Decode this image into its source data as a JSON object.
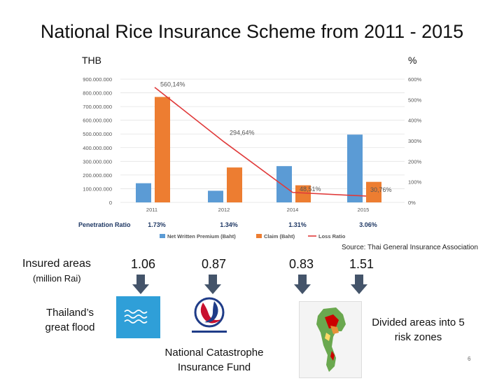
{
  "title": "National Rice Insurance Scheme from 2011 - 2015",
  "unit_left": "THB",
  "unit_right": "%",
  "chart_data": {
    "type": "bar",
    "categories": [
      "2011",
      "2012",
      "2014",
      "2015"
    ],
    "series": [
      {
        "name": "Net Written Premium (Baht)",
        "values": [
          140000,
          85000,
          265000,
          495000
        ],
        "color": "#5b9bd5"
      },
      {
        "name": "Claim (Baht)",
        "values": [
          770000,
          255000,
          125000,
          150000
        ],
        "color": "#ed7d31"
      }
    ],
    "line_series": {
      "name": "Loss Ratio",
      "values": [
        560.14,
        294.64,
        48.51,
        30.76
      ],
      "color": "#e03a3a"
    },
    "line_labels": [
      "560,14%",
      "294,64%",
      "48,51%",
      "30,76%"
    ],
    "y_left_ticks": [
      "0",
      "100.000.000",
      "200.000.000",
      "300.000.000",
      "400.000.000",
      "500.000.000",
      "600.000.000",
      "700.000.000",
      "800.000.000",
      "900.000.000"
    ],
    "y_left_range": [
      0,
      900000
    ],
    "y_right_ticks": [
      "0%",
      "100%",
      "200%",
      "300%",
      "400%",
      "500%",
      "600%"
    ],
    "y_right_range": [
      0,
      600
    ],
    "grid": true,
    "legend_position": "bottom",
    "penetration_label": "Penetration Ratio",
    "penetration_values": [
      "1.73%",
      "1.34%",
      "1.31%",
      "3.06%"
    ]
  },
  "source": "Source: Thai General Insurance Association",
  "insured": {
    "label": "Insured areas",
    "unit": "(million Rai)",
    "values": [
      "1.06",
      "0.87",
      "0.83",
      "1.51"
    ]
  },
  "events": {
    "flood": "Thailand’s great flood",
    "fund": "National Catastrophe Insurance Fund",
    "zones": "Divided areas into 5 risk zones"
  },
  "page_number": "6",
  "colors": {
    "arrow": "#44546a",
    "flood_logo": "#2f9fd8"
  },
  "icons": [
    "flood-waves-icon",
    "catastrophe-fund-logo-icon",
    "risk-zone-map-icon",
    "down-arrow-icon"
  ]
}
